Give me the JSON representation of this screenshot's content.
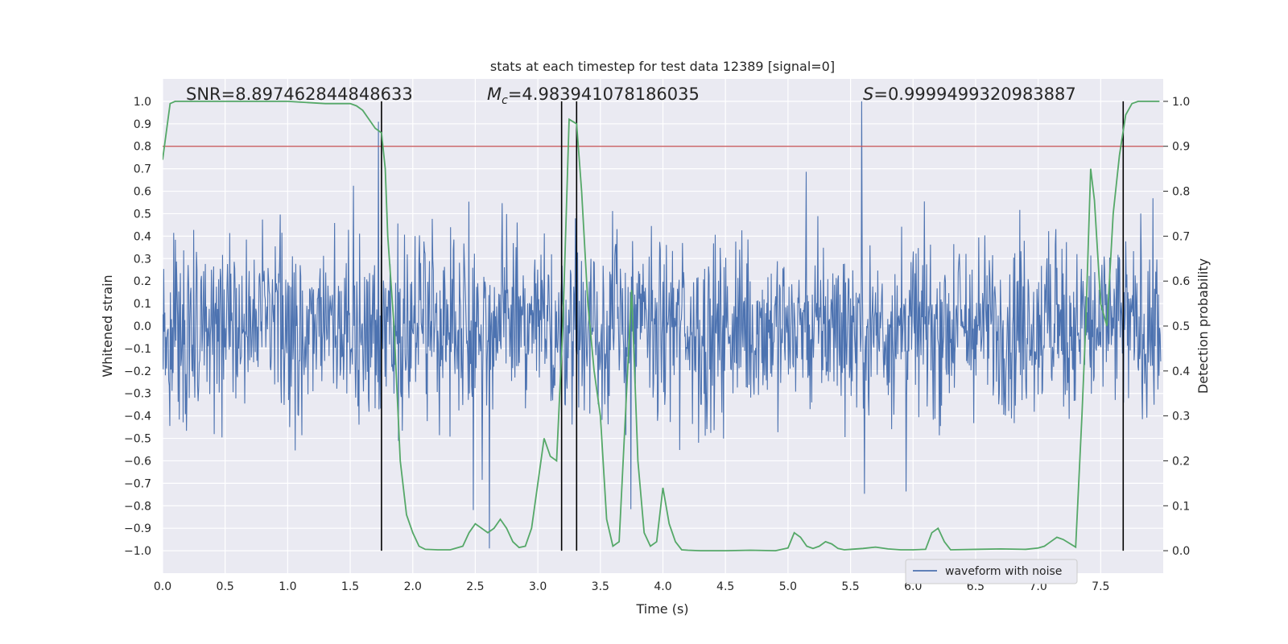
{
  "chart_data": {
    "type": "line",
    "title": "stats at each timestep for test data 12389 [signal=0]",
    "xlabel": "Time (s)",
    "ylabel": "Whitened strain",
    "y2label": "Detection probability",
    "xlim": [
      0.0,
      8.0
    ],
    "ylim": [
      -1.1,
      1.1
    ],
    "y2lim": [
      -0.05,
      1.05
    ],
    "xticks": [
      "0.0",
      "0.5",
      "1.0",
      "1.5",
      "2.0",
      "2.5",
      "3.0",
      "3.5",
      "4.0",
      "4.5",
      "5.0",
      "5.5",
      "6.0",
      "6.5",
      "7.0",
      "7.5"
    ],
    "xtick_values": [
      0.0,
      0.5,
      1.0,
      1.5,
      2.0,
      2.5,
      3.0,
      3.5,
      4.0,
      4.5,
      5.0,
      5.5,
      6.0,
      6.5,
      7.0,
      7.5
    ],
    "yticks": [
      "1.0",
      "0.9",
      "0.8",
      "0.7",
      "0.6",
      "0.5",
      "0.4",
      "0.3",
      "0.2",
      "0.1",
      "0.0",
      "−0.1",
      "−0.2",
      "−0.3",
      "−0.4",
      "−0.5",
      "−0.6",
      "−0.7",
      "−0.8",
      "−0.9",
      "−1.0"
    ],
    "ytick_values": [
      1.0,
      0.9,
      0.8,
      0.7,
      0.6,
      0.5,
      0.4,
      0.3,
      0.2,
      0.1,
      0.0,
      -0.1,
      -0.2,
      -0.3,
      -0.4,
      -0.5,
      -0.6,
      -0.7,
      -0.8,
      -0.9,
      -1.0
    ],
    "y2ticks": [
      "1.0",
      "0.9",
      "0.8",
      "0.7",
      "0.6",
      "0.5",
      "0.4",
      "0.3",
      "0.2",
      "0.1",
      "0.0"
    ],
    "y2tick_values": [
      1.0,
      0.9,
      0.8,
      0.7,
      0.6,
      0.5,
      0.4,
      0.3,
      0.2,
      0.1,
      0.0
    ],
    "annotations": {
      "snr": "SNR=8.897462844848633",
      "mc_symbol": "M",
      "mc_sub": "c",
      "mc_value": "=4.983941078186035",
      "s_symbol": "S",
      "s_value": "=0.9999499320983887"
    },
    "legend": {
      "label": "waveform with noise",
      "placement": "lower-right"
    },
    "threshold": {
      "value": 0.8,
      "axis": "left",
      "color": "#c44e52"
    },
    "vertical_lines": [
      1.75,
      3.19,
      3.31,
      7.68
    ],
    "waveform": {
      "name": "waveform with noise",
      "color": "#4c72b0",
      "samples": 1800,
      "typical_peak": 0.45,
      "max_peak": 1.0,
      "min_peak": -0.99
    },
    "detection_probability": {
      "name": "detection probability",
      "color": "#55a868",
      "x": [
        0.0,
        0.06,
        0.1,
        0.2,
        0.5,
        1.0,
        1.3,
        1.5,
        1.55,
        1.6,
        1.65,
        1.7,
        1.75,
        1.78,
        1.8,
        1.85,
        1.9,
        1.95,
        2.0,
        2.05,
        2.1,
        2.2,
        2.3,
        2.4,
        2.45,
        2.5,
        2.55,
        2.6,
        2.65,
        2.7,
        2.75,
        2.8,
        2.85,
        2.9,
        2.95,
        3.0,
        3.05,
        3.1,
        3.15,
        3.2,
        3.25,
        3.31,
        3.35,
        3.4,
        3.45,
        3.5,
        3.55,
        3.6,
        3.65,
        3.7,
        3.75,
        3.8,
        3.85,
        3.9,
        3.95,
        4.0,
        4.05,
        4.1,
        4.15,
        4.2,
        4.3,
        4.5,
        4.7,
        4.9,
        5.0,
        5.05,
        5.1,
        5.15,
        5.2,
        5.25,
        5.3,
        5.35,
        5.4,
        5.45,
        5.5,
        5.6,
        5.7,
        5.8,
        5.9,
        6.0,
        6.1,
        6.15,
        6.2,
        6.25,
        6.3,
        6.5,
        6.7,
        6.9,
        7.0,
        7.05,
        7.1,
        7.15,
        7.2,
        7.3,
        7.35,
        7.38,
        7.42,
        7.45,
        7.5,
        7.55,
        7.6,
        7.65,
        7.7,
        7.75,
        7.8,
        7.85,
        7.9,
        7.97
      ],
      "y": [
        0.87,
        0.995,
        1.0,
        1.0,
        1.0,
        1.0,
        0.995,
        0.995,
        0.99,
        0.98,
        0.96,
        0.94,
        0.93,
        0.85,
        0.7,
        0.5,
        0.2,
        0.08,
        0.04,
        0.01,
        0.003,
        0.002,
        0.002,
        0.01,
        0.04,
        0.06,
        0.05,
        0.04,
        0.05,
        0.07,
        0.05,
        0.02,
        0.007,
        0.01,
        0.05,
        0.15,
        0.25,
        0.21,
        0.2,
        0.5,
        0.96,
        0.95,
        0.8,
        0.55,
        0.4,
        0.3,
        0.07,
        0.01,
        0.02,
        0.3,
        0.58,
        0.2,
        0.04,
        0.01,
        0.02,
        0.14,
        0.06,
        0.02,
        0.002,
        0.001,
        0.0,
        0.0,
        0.001,
        0.0,
        0.006,
        0.04,
        0.03,
        0.01,
        0.005,
        0.01,
        0.02,
        0.015,
        0.005,
        0.002,
        0.003,
        0.005,
        0.008,
        0.004,
        0.002,
        0.002,
        0.003,
        0.04,
        0.05,
        0.02,
        0.002,
        0.003,
        0.004,
        0.003,
        0.006,
        0.01,
        0.02,
        0.03,
        0.025,
        0.008,
        0.3,
        0.5,
        0.85,
        0.78,
        0.55,
        0.5,
        0.75,
        0.88,
        0.97,
        0.995,
        1.0,
        1.0,
        1.0,
        1.0
      ]
    }
  }
}
